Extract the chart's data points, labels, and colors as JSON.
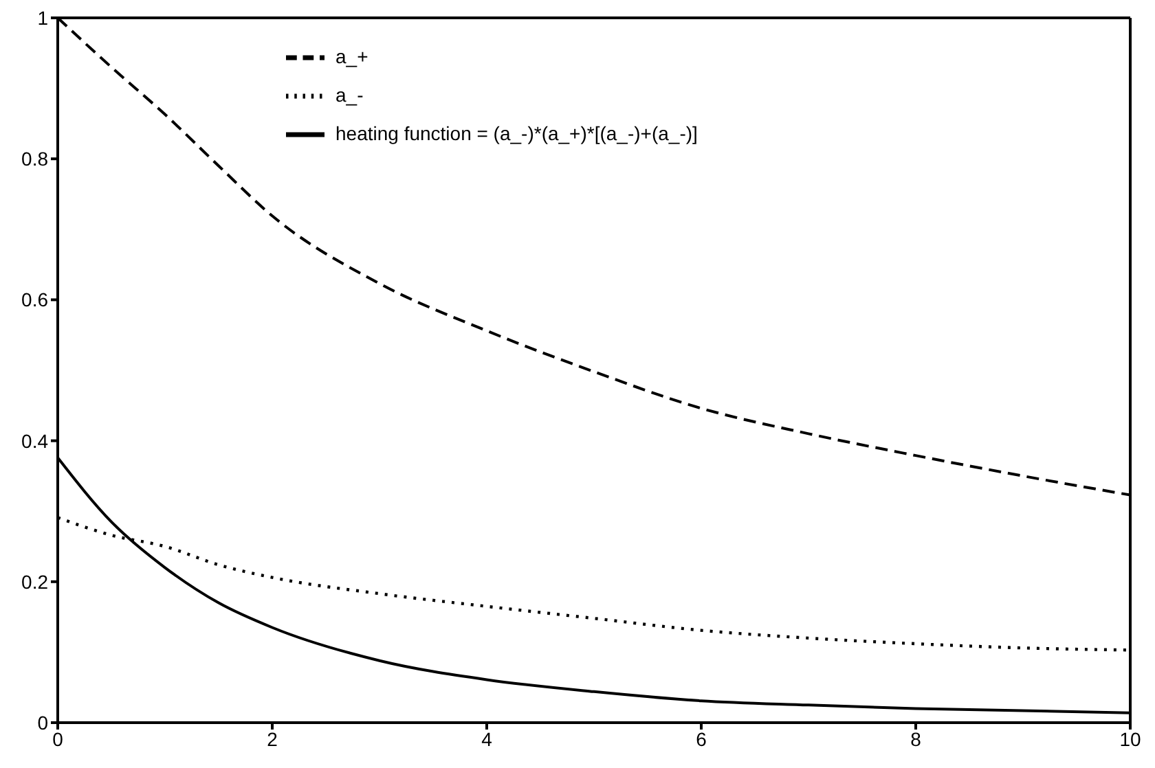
{
  "chart_data": {
    "type": "line",
    "x": [
      0,
      0.5,
      1,
      1.5,
      2,
      3,
      4,
      5,
      6,
      7,
      8,
      9,
      10
    ],
    "series": [
      {
        "name": "a_+",
        "color": "#000000",
        "line_style": "dashed",
        "values": [
          1,
          0.93,
          0.863,
          0.79,
          0.719,
          0.623,
          0.556,
          0.498,
          0.446,
          0.41,
          0.379,
          0.35,
          0.323
        ]
      },
      {
        "name": "a_-",
        "color": "#000000",
        "line_style": "dotted",
        "values": [
          0.291,
          0.266,
          0.25,
          0.224,
          0.206,
          0.183,
          0.165,
          0.148,
          0.131,
          0.12,
          0.112,
          0.106,
          0.103
        ]
      },
      {
        "name": "heating function = (a_-)*(a_+)*[(a_-)+(a_-)]",
        "color": "#000000",
        "line_style": "solid",
        "values": [
          0.376,
          0.285,
          0.22,
          0.17,
          0.135,
          0.088,
          0.061,
          0.044,
          0.031,
          0.025,
          0.02,
          0.017,
          0.014
        ]
      }
    ],
    "xlim": [
      0,
      10
    ],
    "xticks": [
      0,
      2,
      4,
      6,
      8,
      10
    ],
    "ylim": [
      0,
      1
    ],
    "yticks": [
      0,
      0.2,
      0.4,
      0.6,
      0.8,
      1
    ],
    "grid": false,
    "legend": "top",
    "marker": "none"
  }
}
